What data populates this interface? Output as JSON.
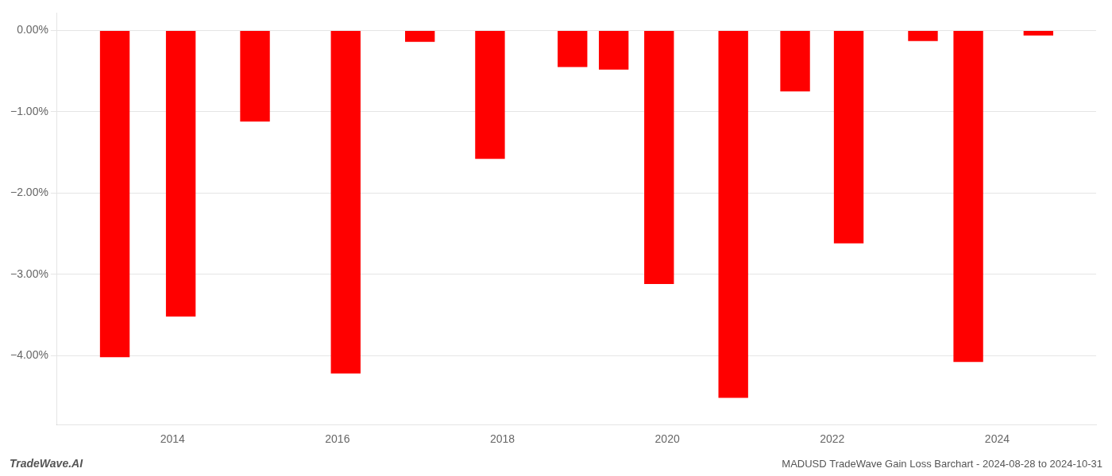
{
  "chart_data": {
    "type": "bar",
    "x": [
      2013.3,
      2014.1,
      2015.0,
      2016.1,
      2017.0,
      2017.85,
      2018.85,
      2019.35,
      2019.9,
      2020.8,
      2021.55,
      2022.2,
      2023.1,
      2023.65,
      2024.5
    ],
    "values": [
      -4.02,
      -3.52,
      -1.12,
      -4.22,
      -0.14,
      -1.58,
      -0.45,
      -0.48,
      -3.12,
      -4.52,
      -0.75,
      -2.62,
      -0.13,
      -4.08,
      -0.06
    ],
    "color": "#FF0000",
    "xlim": [
      2012.6,
      2025.2
    ],
    "xticks": [
      2014,
      2016,
      2018,
      2020,
      2022,
      2024
    ],
    "ylim": [
      -4.85,
      0.22
    ],
    "yticks": [
      {
        "value": 0.0,
        "label": "0.00%"
      },
      {
        "value": -1.0,
        "label": "−1.00%"
      },
      {
        "value": -2.0,
        "label": "−2.00%"
      },
      {
        "value": -3.0,
        "label": "−3.00%"
      },
      {
        "value": -4.0,
        "label": "−4.00%"
      }
    ],
    "grid": "y",
    "annotations": [
      "TradeWave.AI",
      "MADUSD TradeWave Gain Loss Barchart - 2024-08-28 to 2024-10-31"
    ]
  }
}
